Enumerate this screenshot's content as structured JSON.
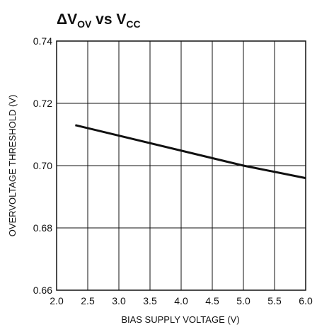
{
  "chart_data": {
    "type": "line",
    "title": {
      "prefix": "ΔV",
      "prefix_sub": "OV",
      "middle": " vs V",
      "suffix_sub": "CC"
    },
    "xlabel": "BIAS SUPPLY VOLTAGE (V)",
    "ylabel": "OVERVOLTAGE THRESHOLD (V)",
    "xlim": [
      2.0,
      6.0
    ],
    "ylim": [
      0.66,
      0.74
    ],
    "x_ticks": [
      "2.0",
      "2.5",
      "3.0",
      "3.5",
      "4.0",
      "4.5",
      "5.0",
      "5.5",
      "6.0"
    ],
    "y_ticks": [
      "0.66",
      "0.68",
      "0.70",
      "0.72",
      "0.74"
    ],
    "grid": true,
    "series": [
      {
        "x": [
          2.3,
          5.0,
          6.0
        ],
        "y": [
          0.713,
          0.7,
          0.696
        ]
      }
    ],
    "line_color": "#111111"
  }
}
